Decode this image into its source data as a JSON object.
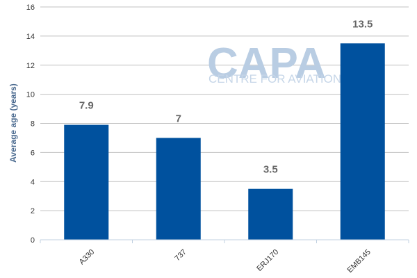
{
  "watermark": {
    "brand": "CAPA",
    "tagline": "CENTRE FOR AVIATION"
  },
  "chart_data": {
    "type": "bar",
    "categories": [
      "A330",
      "737",
      "ERJ170",
      "EMB145"
    ],
    "values": [
      7.9,
      7,
      3.5,
      13.5
    ],
    "data_labels": [
      "7.9",
      "7",
      "3.5",
      "13.5"
    ],
    "ylabel": "Average age (years)",
    "xlabel": "",
    "ylim": [
      0,
      16
    ],
    "yticks": [
      0,
      2,
      4,
      6,
      8,
      10,
      12,
      14,
      16
    ],
    "grid": true,
    "bar_color": "#00519e",
    "legend": "none"
  }
}
